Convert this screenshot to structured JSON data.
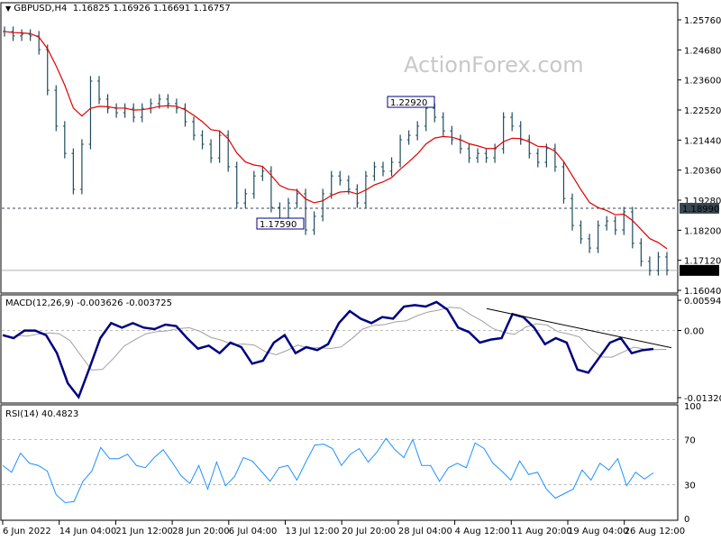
{
  "header": {
    "symbol": "GBPUSD,H4",
    "open": "1.16825",
    "high": "1.16926",
    "low": "1.16691",
    "close": "1.16757"
  },
  "watermark": "ActionForex.com",
  "colors": {
    "bars": "#1f4b5c",
    "ma": "#e00000",
    "macd": "#000080",
    "signal": "#a0a0a0",
    "rsi": "#1e90ff",
    "level_box": "#37474f",
    "price_box": "#000000"
  },
  "chart_data": [
    {
      "type": "bar",
      "title": "GBPUSD,H4",
      "y_ticks": [
        "1.25760",
        "1.24680",
        "1.23600",
        "1.22520",
        "1.21440",
        "1.20360",
        "1.19280",
        "1.18200",
        "1.17120",
        "1.16040"
      ],
      "ylim": [
        1.1604,
        1.2576
      ],
      "x_ticks": [
        "6 Jun 2022",
        "14 Jun 04:00",
        "21 Jun 12:00",
        "28 Jun 20:00",
        "6 Jul 04:00",
        "13 Jul 12:00",
        "20 Jul 20:00",
        "28 Jul 04:00",
        "4 Aug 12:00",
        "11 Aug 20:00",
        "19 Aug 04:00",
        "26 Aug 12:00"
      ],
      "close": [
        1.2534,
        1.2518,
        1.2524,
        1.2518,
        1.2469,
        1.2323,
        1.2194,
        1.2096,
        1.1967,
        1.2129,
        1.2356,
        1.2291,
        1.2258,
        1.2242,
        1.2258,
        1.2226,
        1.2258,
        1.2275,
        1.2291,
        1.2275,
        1.2258,
        1.221,
        1.2161,
        1.2129,
        1.208,
        1.2161,
        1.2048,
        1.1918,
        1.1951,
        1.2015,
        1.2032,
        1.1902,
        1.1853,
        1.1918,
        1.1951,
        1.1821,
        1.187,
        1.1951,
        1.2015,
        1.1999,
        1.1967,
        1.1918,
        1.2015,
        1.2048,
        1.2032,
        1.2064,
        1.2145,
        1.2161,
        1.2194,
        1.2258,
        1.2226,
        1.2177,
        1.2145,
        1.2113,
        1.208,
        1.2096,
        1.208,
        1.2113,
        1.2226,
        1.2194,
        1.2145,
        1.2096,
        1.2064,
        1.2113,
        1.2048,
        1.1934,
        1.1837,
        1.1789,
        1.1756,
        1.1837,
        1.1853,
        1.1821,
        1.1886,
        1.1773,
        1.1708,
        1.1675,
        1.1724,
        1.16757
      ],
      "annotations": [
        {
          "label": "1.22920",
          "value": 1.2292
        },
        {
          "label": "1.17590",
          "value": 1.1759
        }
      ],
      "level_line": {
        "label": "1.18990",
        "value": 1.1899
      },
      "current_price": {
        "label": "1.16757",
        "value": 1.16757
      }
    },
    {
      "type": "line",
      "title": "MACD(12,26,9) -0.003626 -0.003725",
      "y_ticks": [
        "0.005941",
        "0.00",
        "-0.013207"
      ],
      "ylim": [
        -0.013207,
        0.005941
      ],
      "macd": [
        -0.00092,
        -0.00151,
        -3e-05,
        -3e-05,
        -0.00092,
        -0.00446,
        -0.01037,
        -0.0131,
        -0.00742,
        -0.00151,
        0.00145,
        0.00056,
        0.00145,
        0.00056,
        0.00027,
        0.00115,
        0.00086,
        -0.00151,
        -0.00358,
        -0.00298,
        -0.00446,
        -0.00239,
        -0.00328,
        -0.00653,
        -0.00594,
        -0.00239,
        -0.00092,
        -0.00446,
        -0.00328,
        -0.00387,
        -0.00269,
        0.00145,
        0.00381,
        0.00233,
        0.00145,
        0.00263,
        0.00233,
        0.0047,
        0.00499,
        0.0047,
        0.00559,
        0.00411,
        0.00056,
        -0.00032,
        -0.00239,
        -0.0018,
        -0.00151,
        0.00322,
        0.00263,
        0.00056,
        -0.00269,
        -0.00151,
        -0.00239,
        -0.00771,
        -0.0083,
        -0.00535,
        -0.00239,
        -0.00151,
        -0.00446,
        -0.00387,
        -0.00363
      ],
      "trendline": {
        "from": 0.0043,
        "to": -0.0029
      }
    },
    {
      "type": "line",
      "title": "RSI(14) 40.4823",
      "y_ticks": [
        "100",
        "70",
        "30",
        "0"
      ],
      "ylim": [
        0,
        100
      ],
      "levels": [
        70,
        30
      ],
      "rsi": [
        47,
        41,
        58,
        49,
        47,
        42,
        21,
        14,
        15,
        33,
        42,
        63,
        53,
        53,
        57,
        47,
        45,
        54,
        61,
        50,
        38,
        31,
        47,
        26,
        50,
        29,
        37,
        54,
        51,
        42,
        33,
        45,
        47,
        34,
        50,
        65,
        66,
        62,
        47,
        57,
        62,
        50,
        59,
        71,
        61,
        54,
        70,
        47,
        47,
        33,
        45,
        49,
        45,
        67,
        62,
        49,
        42,
        34,
        51,
        39,
        41,
        26,
        18,
        22,
        26,
        43,
        34,
        49,
        43,
        53,
        29,
        41,
        35,
        40.48
      ]
    }
  ]
}
